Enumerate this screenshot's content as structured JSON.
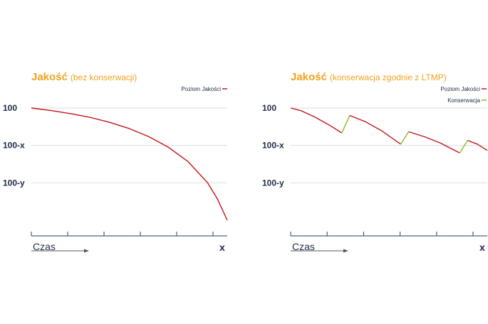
{
  "colors": {
    "title": "#f0a21e",
    "axis_text": "#1f2a44",
    "quality_line": "#c0151b",
    "conservation_line": "#8cb82a",
    "grid": "#dddddd",
    "axis": "#2b3a5e",
    "arrow": "#555555"
  },
  "chart_data": [
    {
      "type": "line",
      "title": "Jakość",
      "subtitle": "(bez konserwacji)",
      "xlabel": "Czas",
      "x_end_label": "x",
      "y_ticks": [
        "100",
        "100-x",
        "100-y"
      ],
      "y_tick_values": [
        100,
        70,
        40
      ],
      "ylim": [
        10,
        110
      ],
      "xlim": [
        0,
        100
      ],
      "legend": [
        {
          "name": "Poziom Jakości",
          "color": "#c0151b"
        }
      ],
      "legend_position": "top-right",
      "grid": true,
      "x_ticks_count": 6,
      "series": [
        {
          "name": "Poziom Jakości",
          "points": [
            [
              0,
              100
            ],
            [
              10,
              98
            ],
            [
              20,
              95.5
            ],
            [
              30,
              92.5
            ],
            [
              40,
              88.5
            ],
            [
              50,
              83.5
            ],
            [
              60,
              77
            ],
            [
              70,
              68.5
            ],
            [
              80,
              57
            ],
            [
              90,
              40
            ],
            [
              95,
              27
            ],
            [
              100,
              10
            ]
          ]
        }
      ]
    },
    {
      "type": "line",
      "title": "Jakość",
      "subtitle": "(konserwacja zgodnie z LTMP)",
      "xlabel": "Czas",
      "x_end_label": "x",
      "y_ticks": [
        "100",
        "100-x",
        "100-y"
      ],
      "y_tick_values": [
        100,
        70,
        40
      ],
      "ylim": [
        10,
        110
      ],
      "xlim": [
        0,
        100
      ],
      "legend": [
        {
          "name": "Poziom Jakości",
          "color": "#c0151b"
        },
        {
          "name": "Konserwacja",
          "color": "#8cb82a"
        }
      ],
      "legend_position": "top-right",
      "grid": true,
      "x_ticks_count": 6,
      "series": [
        {
          "name": "Poziom Jakości",
          "points": [
            [
              0,
              100
            ],
            [
              5,
              98
            ],
            [
              12,
              93
            ],
            [
              20,
              86
            ],
            [
              26,
              80
            ]
          ]
        },
        {
          "name": "Konserwacja",
          "points": [
            [
              26,
              80
            ],
            [
              30,
              94
            ]
          ]
        },
        {
          "name": "Poziom Jakości",
          "points": [
            [
              30,
              94
            ],
            [
              38,
              89
            ],
            [
              46,
              82
            ],
            [
              56,
              71
            ]
          ]
        },
        {
          "name": "Konserwacja",
          "points": [
            [
              56,
              71
            ],
            [
              60,
              81
            ]
          ]
        },
        {
          "name": "Poziom Jakości",
          "points": [
            [
              60,
              81
            ],
            [
              68,
              77
            ],
            [
              76,
              72
            ],
            [
              86,
              64
            ]
          ]
        },
        {
          "name": "Konserwacja",
          "points": [
            [
              86,
              64
            ],
            [
              90,
              74
            ]
          ]
        },
        {
          "name": "Poziom Jakości",
          "points": [
            [
              90,
              74
            ],
            [
              95,
              71
            ],
            [
              100,
              66
            ]
          ]
        }
      ]
    }
  ]
}
